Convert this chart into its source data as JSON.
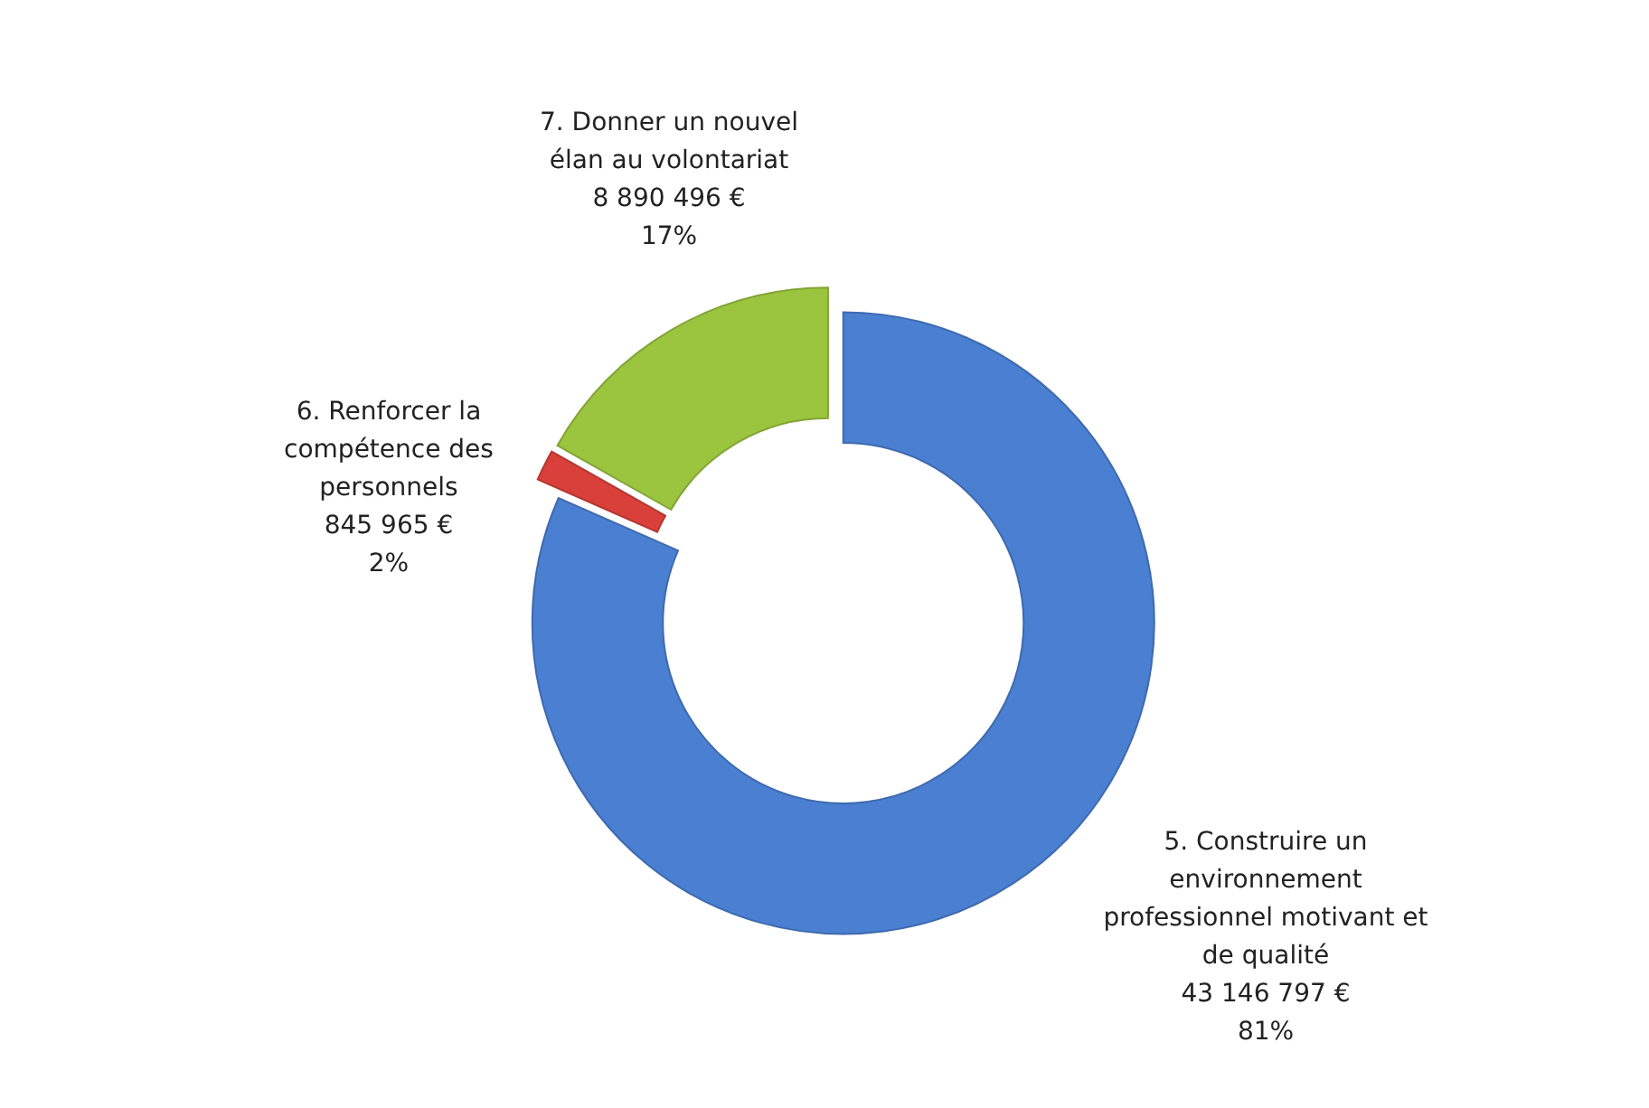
{
  "chart_data": {
    "type": "donut",
    "categories": [
      "5. Construire un environnement professionnel motivant et de qualité",
      "6. Renforcer la compétence des personnels",
      "7. Donner un nouvel élan au volontariat"
    ],
    "values": [
      43146797,
      845965,
      8890496
    ],
    "colors": [
      "#4a7fd1",
      "#d9403a",
      "#9bc43f"
    ],
    "value_labels": [
      "43 146 797 €\n81%",
      "845 965 €\n2%",
      "8 890 496 €\n17%"
    ],
    "legend": false
  }
}
